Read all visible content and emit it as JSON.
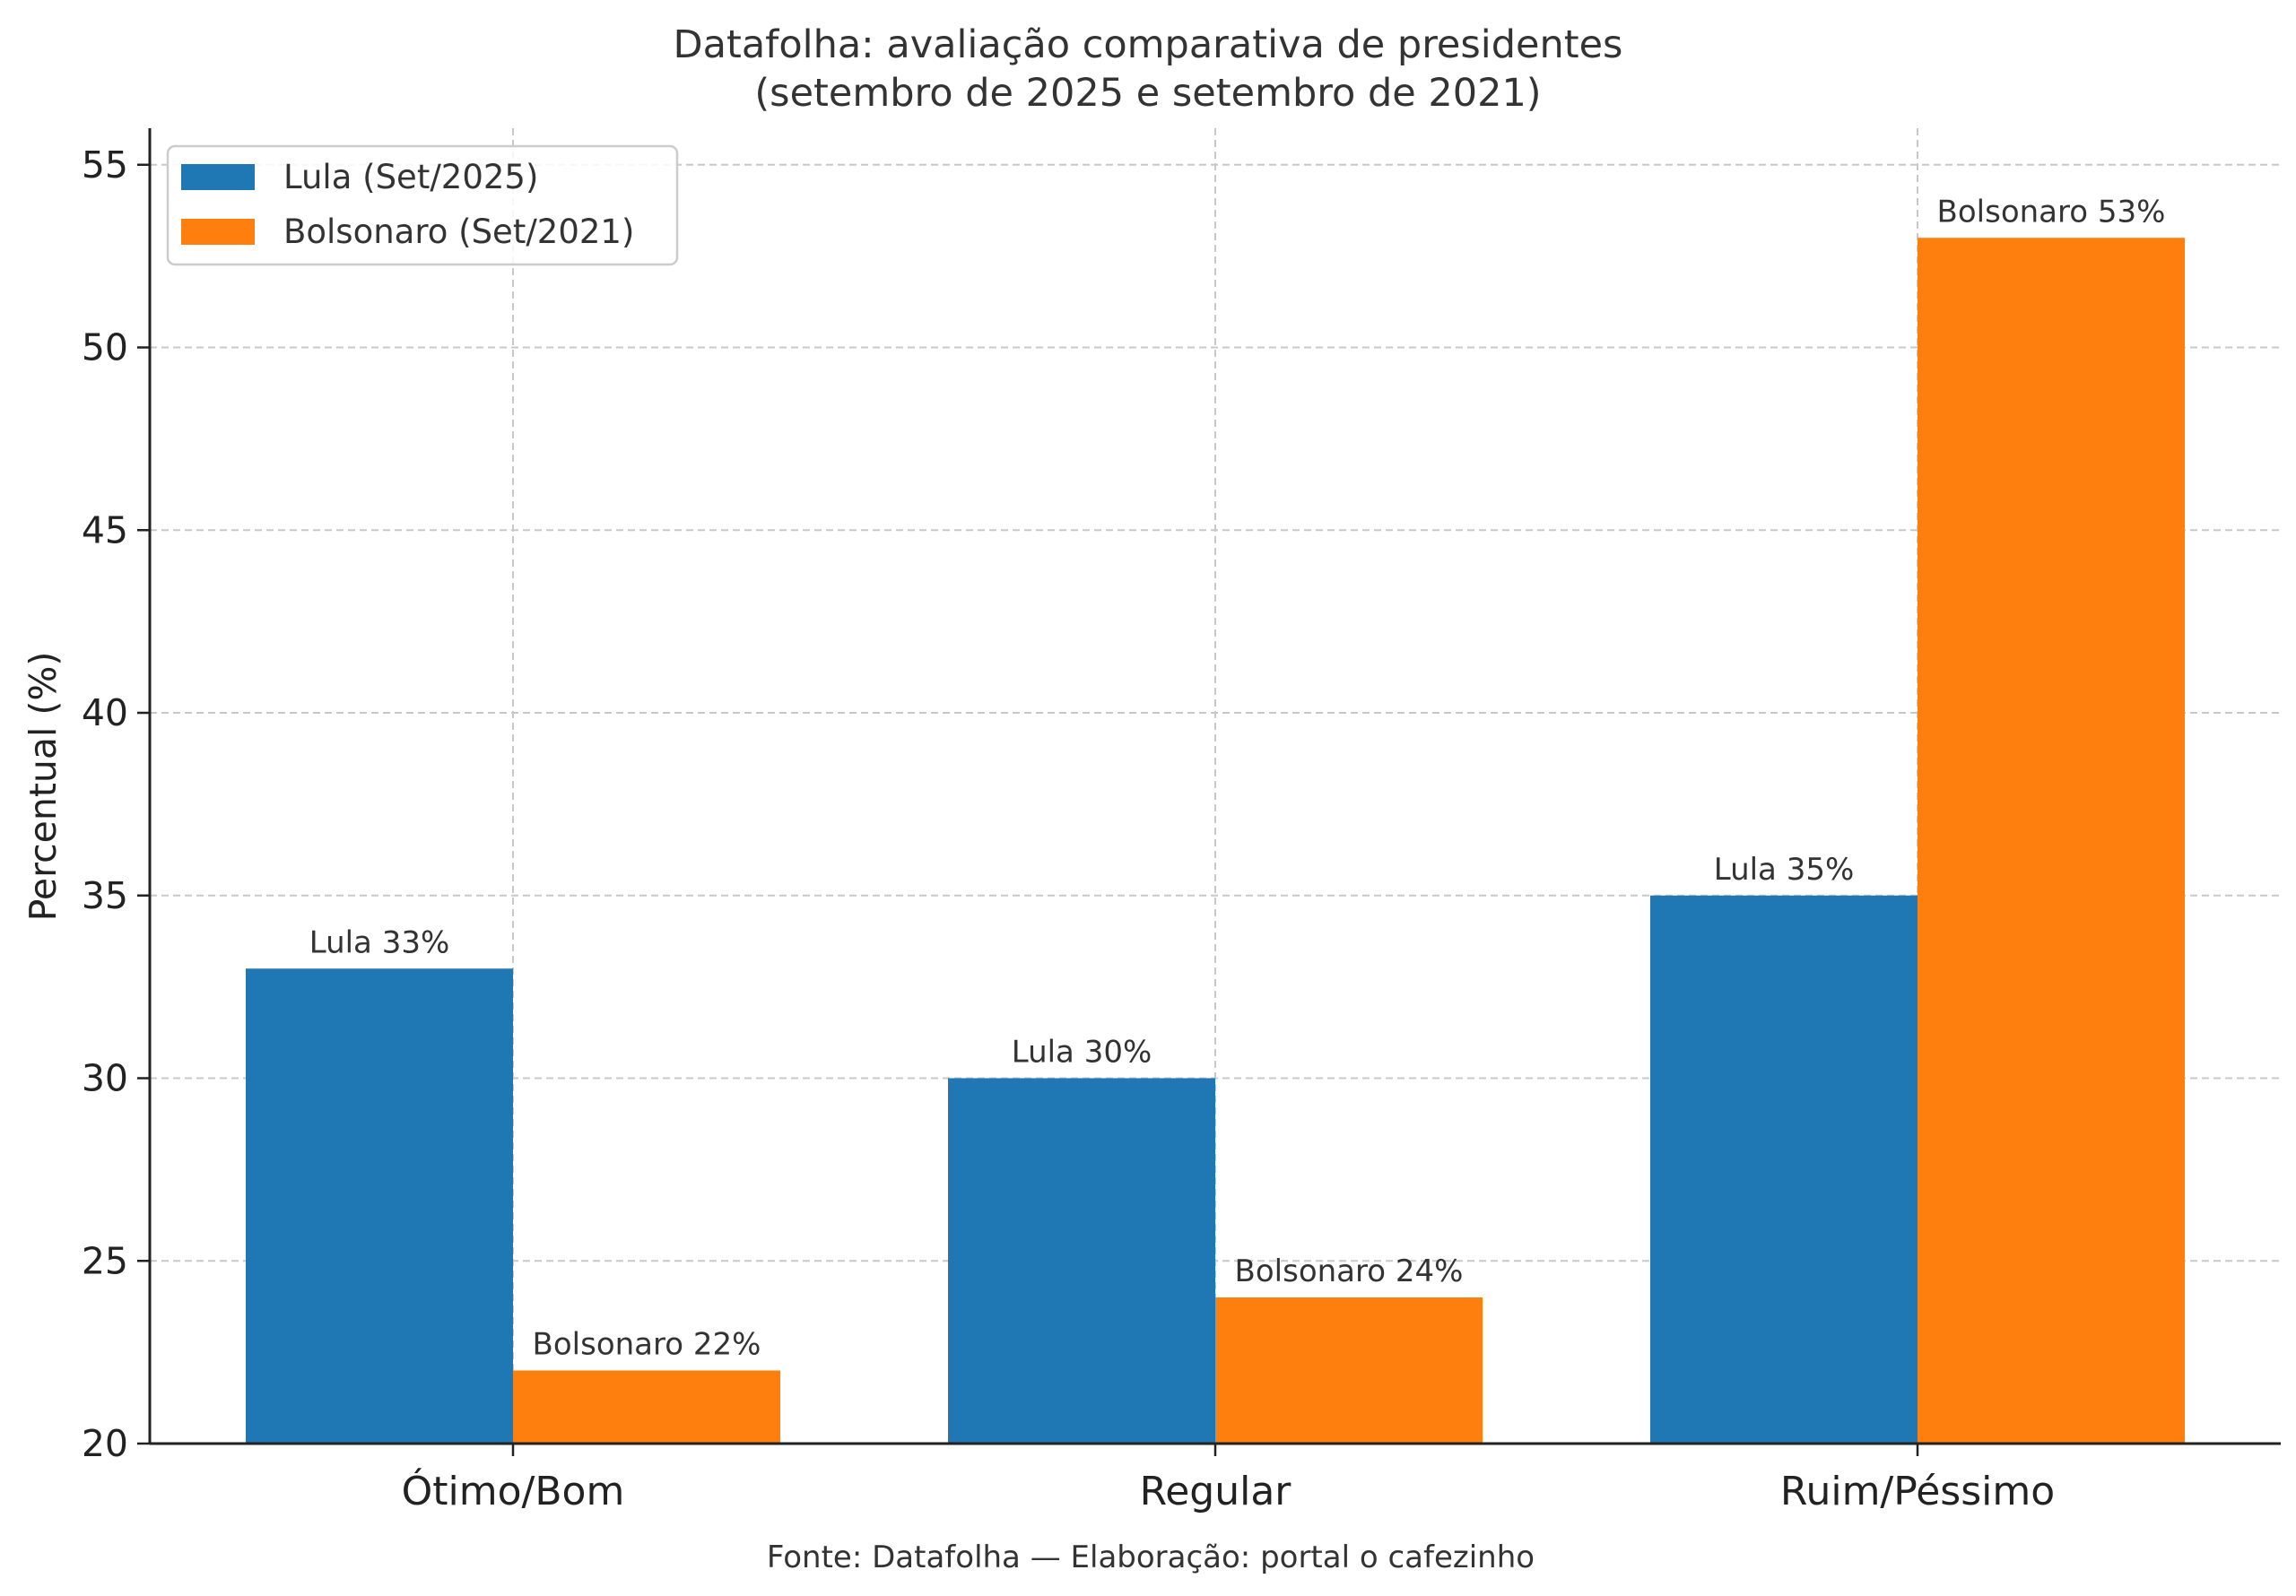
{
  "chart_data": {
    "type": "bar",
    "title": "Datafolha: avaliação comparativa de presidentes",
    "subtitle": "(setembro de 2025 e setembro de 2021)",
    "xlabel": "",
    "ylabel": "Percentual (%)",
    "categories": [
      "Ótimo/Bom",
      "Regular",
      "Ruim/Péssimo"
    ],
    "series": [
      {
        "name": "Lula (Set/2025)",
        "values": [
          33,
          30,
          35
        ],
        "color": "#1f77b4",
        "data_labels": [
          "Lula 33%",
          "Lula 30%",
          "Lula 35%"
        ]
      },
      {
        "name": "Bolsonaro (Set/2021)",
        "values": [
          22,
          24,
          53
        ],
        "color": "#ff7f0e",
        "data_labels": [
          "Bolsonaro 22%",
          "Bolsonaro 24%",
          "Bolsonaro 53%"
        ]
      }
    ],
    "ylim": [
      20,
      56
    ],
    "yticks": [
      20,
      25,
      30,
      35,
      40,
      45,
      50,
      55
    ],
    "grid": true,
    "legend_position": "top-left"
  },
  "source_note": "Fonte: Datafolha — Elaboração: portal o cafezinho"
}
